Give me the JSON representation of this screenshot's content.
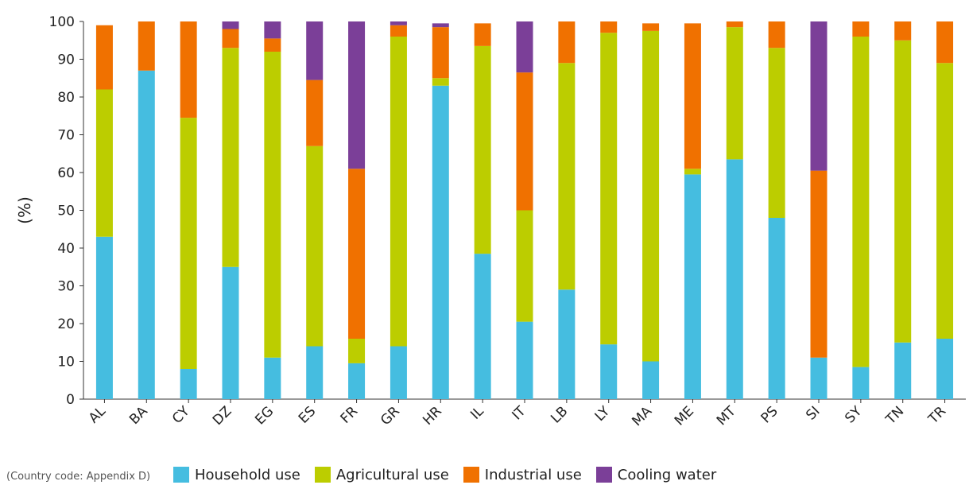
{
  "chart_data": {
    "type": "bar",
    "stacked": true,
    "ylabel": "(%)",
    "ylim": [
      0,
      100
    ],
    "yticks": [
      0,
      10,
      20,
      30,
      40,
      50,
      60,
      70,
      80,
      90,
      100
    ],
    "categories": [
      "AL",
      "BA",
      "CY",
      "DZ",
      "EG",
      "ES",
      "FR",
      "GR",
      "HR",
      "IL",
      "IT",
      "LB",
      "LY",
      "MA",
      "ME",
      "MT",
      "PS",
      "SI",
      "SY",
      "TN",
      "TR"
    ],
    "series": [
      {
        "name": "Household use",
        "color": "#45bde0",
        "values": [
          43,
          87,
          8,
          35,
          11,
          14,
          9.5,
          14,
          83,
          38.5,
          20.5,
          29,
          14.5,
          10,
          59.5,
          63.5,
          48,
          11,
          8.5,
          15,
          16
        ]
      },
      {
        "name": "Agricultural use",
        "color": "#bccd00",
        "values": [
          39,
          0,
          66.5,
          58,
          81,
          53,
          6.5,
          82,
          2,
          55,
          29.5,
          60,
          82.5,
          87.5,
          1.5,
          35,
          45,
          0,
          87.5,
          80,
          73
        ]
      },
      {
        "name": "Industrial use",
        "color": "#f07100",
        "values": [
          17,
          13,
          25.5,
          5,
          3.5,
          17.5,
          45,
          3,
          13.5,
          6,
          36.5,
          11,
          3,
          2,
          38.5,
          1.5,
          7,
          49.5,
          4,
          5,
          11
        ]
      },
      {
        "name": "Cooling water",
        "color": "#7b3f98",
        "values": [
          0,
          0,
          0,
          2,
          4.5,
          15.5,
          39,
          1,
          1,
          0,
          13.5,
          0,
          0,
          0,
          0,
          0,
          0,
          39.5,
          0,
          0,
          0
        ]
      }
    ],
    "note": "(Country code: Appendix D)",
    "legend_position": "bottom"
  }
}
